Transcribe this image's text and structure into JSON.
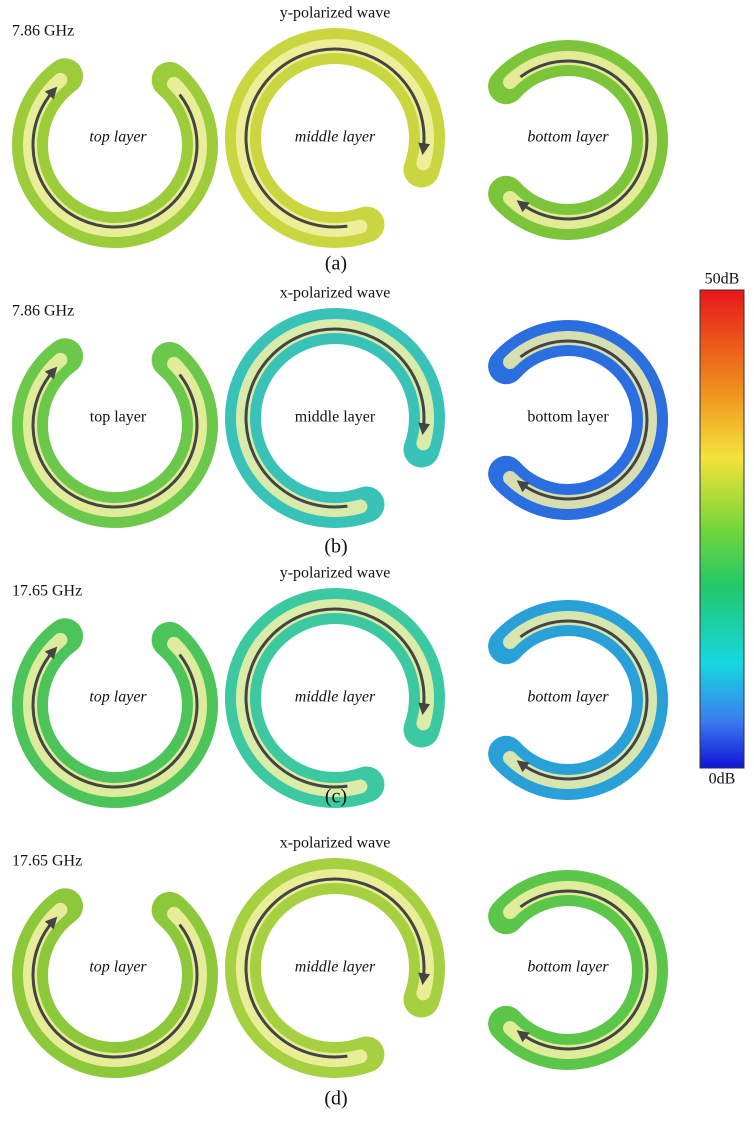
{
  "panels": [
    {
      "frequency": "7.86 GHz",
      "wave": "y-polarized wave",
      "layers": [
        "top layer",
        "middle layer",
        "bottom layer"
      ],
      "label": "(a)"
    },
    {
      "frequency": "7.86 GHz",
      "wave": "x-polarized wave",
      "layers": [
        "top layer",
        "middle layer",
        "bottom layer"
      ],
      "label": "(b)"
    },
    {
      "frequency": "17.65 GHz",
      "wave": "y-polarized wave",
      "layers": [
        "top layer",
        "middle layer",
        "bottom layer"
      ],
      "label": "(c)"
    },
    {
      "frequency": "17.65 GHz",
      "wave": "x-polarized wave",
      "layers": [
        "top layer",
        "middle layer",
        "bottom layer"
      ],
      "label": "(d)"
    }
  ],
  "colorbar": {
    "max_label": "50dB",
    "min_label": "0dB"
  }
}
